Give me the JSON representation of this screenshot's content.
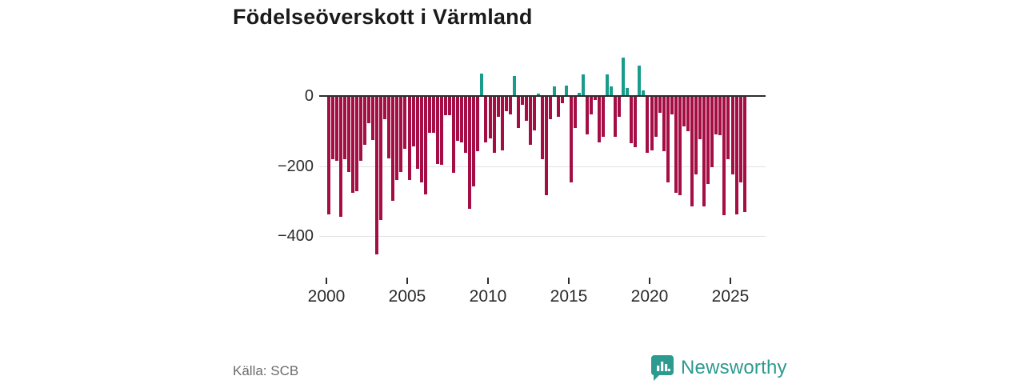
{
  "title": "Födelseöverskott i Värmland",
  "source": "Källa: SCB",
  "logo": {
    "text": "Newsworthy",
    "icon": "newsworthy-speech-bubble-chart-icon"
  },
  "colors": {
    "negative_bar": "#a50e45",
    "positive_bar": "#199c8c",
    "baseline": "#2e2e2e",
    "gridline": "#e2e2e2",
    "brand_teal": "#2c9a8f"
  },
  "chart_data": {
    "type": "bar",
    "title": "Födelseöverskott i Värmland",
    "xlabel": "",
    "ylabel": "",
    "frequency": "quarterly",
    "x_start": "2000Q1",
    "x_end": "2025Q4",
    "x_tick_years": [
      2000,
      2005,
      2010,
      2015,
      2020,
      2025
    ],
    "x_tick_labels": [
      "2000",
      "2005",
      "2010",
      "2015",
      "2020",
      "2025"
    ],
    "y_ticks": [
      0,
      -200,
      -400
    ],
    "y_tick_labels": [
      "0",
      "−200",
      "−400"
    ],
    "ylim": [
      -460,
      120
    ],
    "grid": "horizontal",
    "legend": "none",
    "values": [
      -336,
      -179,
      -183,
      -342,
      -179,
      -214,
      -275,
      -269,
      -183,
      -137,
      -76,
      -124,
      -450,
      -351,
      -65,
      -175,
      -298,
      -237,
      -214,
      -149,
      -237,
      -141,
      -206,
      -244,
      -279,
      -103,
      -103,
      -191,
      -195,
      -53,
      -53,
      -218,
      -126,
      -130,
      -160,
      -321,
      -256,
      -156,
      64,
      -130,
      -118,
      -160,
      -57,
      -152,
      -42,
      -50,
      57,
      -88,
      -23,
      -69,
      -137,
      -95,
      8,
      -179,
      -282,
      -65,
      27,
      -57,
      -19,
      29,
      -244,
      -88,
      9,
      61,
      -107,
      -50,
      -10,
      -130,
      -114,
      61,
      27,
      -114,
      -57,
      110,
      23,
      -133,
      -145,
      88,
      15,
      -160,
      -152,
      -114,
      -46,
      -156,
      -244,
      -50,
      -274,
      -282,
      -84,
      -99,
      -312,
      -221,
      -122,
      -312,
      -248,
      -202,
      -107,
      -110,
      -339,
      -179,
      -221,
      -335,
      -245,
      -330
    ]
  }
}
